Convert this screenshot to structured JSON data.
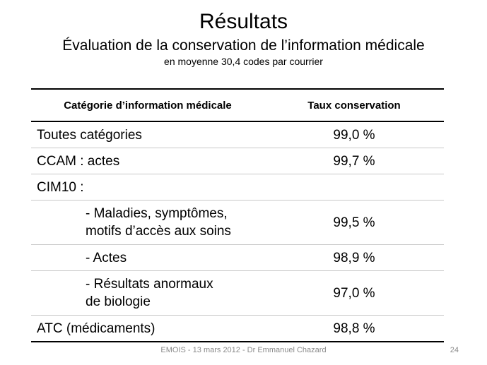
{
  "slide": {
    "title": "Résultats",
    "subtitle": "Évaluation de la conservation de l’information médicale",
    "subnote": "en moyenne 30,4 codes par courrier"
  },
  "table": {
    "headers": [
      "Catégorie d’information médicale",
      "Taux conservation"
    ],
    "rows": [
      {
        "label_line1": "Toutes catégories",
        "label_line2": "",
        "value": "99,0 %"
      },
      {
        "label_line1": "CCAM : actes",
        "label_line2": "",
        "value": "99,7 %"
      },
      {
        "label_line1": "CIM10 :",
        "label_line2": "",
        "value": ""
      },
      {
        "label_line1": "- Maladies, symptômes,",
        "label_line2": "motifs d’accès aux soins",
        "value": "99,5 %"
      },
      {
        "label_line1": "- Actes",
        "label_line2": "",
        "value": "98,9 %"
      },
      {
        "label_line1": "- Résultats anormaux",
        "label_line2": "de biologie",
        "value": "97,0 %"
      },
      {
        "label_line1": "ATC (médicaments)",
        "label_line2": "",
        "value": "98,8 %"
      }
    ]
  },
  "footer": {
    "text": "EMOIS - 13 mars 2012 - Dr Emmanuel Chazard",
    "page_number": "24"
  }
}
